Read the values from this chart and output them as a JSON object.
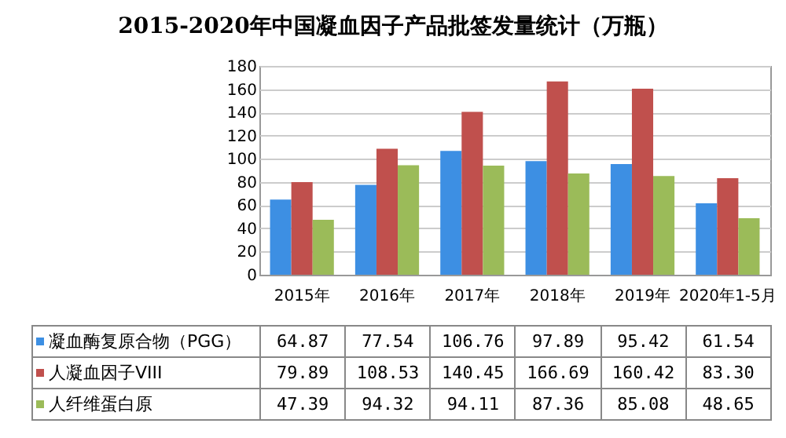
{
  "chart_data": {
    "type": "bar",
    "title": "2015-2020年中国凝血因子产品批签发量统计（万瓶）",
    "categories": [
      "2015年",
      "2016年",
      "2017年",
      "2018年",
      "2019年",
      "2020年1-5月"
    ],
    "series": [
      {
        "name": "凝血酶复原合物（PGG）",
        "color": "#3d8fe3",
        "values": [
          64.87,
          77.54,
          106.76,
          97.89,
          95.42,
          61.54
        ],
        "value_labels": [
          "64.87",
          "77.54",
          "106.76",
          "97.89",
          "95.42",
          "61.54"
        ]
      },
      {
        "name": "人凝血因子VIII",
        "color": "#c0504d",
        "values": [
          79.89,
          108.53,
          140.45,
          166.69,
          160.42,
          83.3
        ],
        "value_labels": [
          "79.89",
          "108.53",
          "140.45",
          "166.69",
          "160.42",
          "83.30"
        ]
      },
      {
        "name": "人纤维蛋白原",
        "color": "#9bbb59",
        "values": [
          47.39,
          94.32,
          94.11,
          87.36,
          85.08,
          48.65
        ],
        "value_labels": [
          "47.39",
          "94.32",
          "94.11",
          "87.36",
          "85.08",
          "48.65"
        ]
      }
    ],
    "ylim": [
      0,
      180
    ],
    "yticks": [
      0,
      20,
      40,
      60,
      80,
      100,
      120,
      140,
      160,
      180
    ],
    "grid": "y",
    "legend": "bottom"
  }
}
